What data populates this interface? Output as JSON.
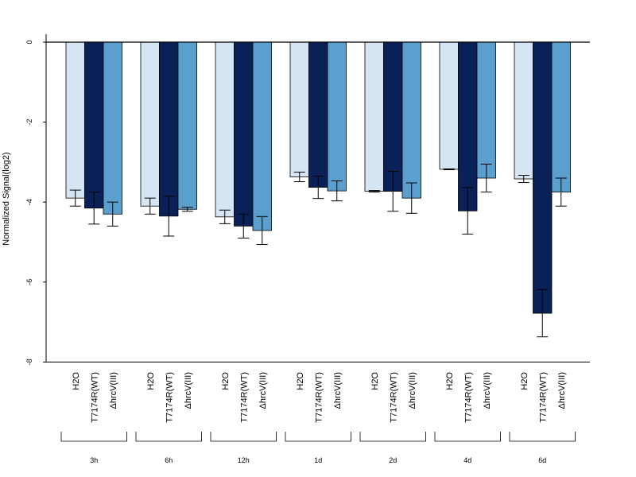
{
  "chart_data": {
    "type": "bar",
    "ylabel": "Normalized Signal(log2)",
    "ylim": [
      -8,
      0
    ],
    "yticks": [
      0,
      -2,
      -4,
      -6,
      -8
    ],
    "baseline": 0,
    "groups": [
      "3h",
      "6h",
      "12h",
      "1d",
      "2d",
      "4d",
      "6d"
    ],
    "series": [
      {
        "name": "H2O",
        "color": "#d6e5f4",
        "values": [
          -3.9,
          -4.1,
          -4.37,
          -3.37,
          -3.73,
          -3.18,
          -3.42
        ],
        "errors": [
          0.2,
          0.2,
          0.17,
          0.12,
          0.02,
          0.01,
          0.09
        ]
      },
      {
        "name": "T7174R(WT)",
        "color": "#0a2158",
        "values": [
          -4.15,
          -4.35,
          -4.6,
          -3.63,
          -3.73,
          -4.22,
          -6.78
        ],
        "errors": [
          0.4,
          0.5,
          0.3,
          0.28,
          0.5,
          0.58,
          0.59
        ]
      },
      {
        "name": "ΔhrcV(III)",
        "color": "#5b9fcf",
        "values": [
          -4.3,
          -4.18,
          -4.71,
          -3.72,
          -3.9,
          -3.4,
          -3.75
        ],
        "errors": [
          0.3,
          0.05,
          0.35,
          0.25,
          0.38,
          0.35,
          0.35
        ]
      }
    ],
    "grid": false,
    "legend": "none"
  }
}
